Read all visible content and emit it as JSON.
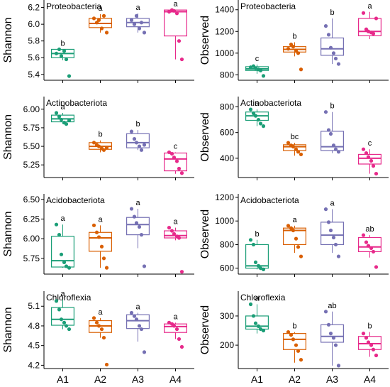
{
  "colors": [
    "#1b9e77",
    "#d95f02",
    "#7570b3",
    "#e7298a"
  ],
  "groups": [
    "A1",
    "A2",
    "A3",
    "A4"
  ],
  "chart_data": [
    {
      "type": "box",
      "title": "Proteobacteria",
      "ylabel": "Shannon",
      "ylim": [
        5.33,
        6.29
      ],
      "yticks": [
        5.4,
        5.6,
        5.8,
        6.0,
        6.2
      ],
      "boxes": [
        {
          "q1": 5.6,
          "median": 5.65,
          "q3": 5.7,
          "lo": 5.57,
          "hi": 5.7
        },
        {
          "q1": 5.96,
          "median": 6.01,
          "q3": 6.07,
          "lo": 5.9,
          "hi": 6.12
        },
        {
          "q1": 5.97,
          "median": 6.02,
          "q3": 6.07,
          "lo": 5.9,
          "hi": 6.13
        },
        {
          "q1": 5.86,
          "median": 6.15,
          "q3": 6.17,
          "lo": 5.58,
          "hi": 6.17
        }
      ],
      "points": [
        [
          5.65,
          5.7,
          5.62,
          5.68,
          5.58,
          5.38
        ],
        [
          6.07,
          6.02,
          6.05,
          5.95,
          6.1,
          5.9
        ],
        [
          6.05,
          6.0,
          6.1,
          5.95,
          6.02,
          5.9
        ],
        [
          6.15,
          6.17,
          6.16,
          6.13,
          5.8,
          5.58
        ]
      ],
      "letters": [
        "b",
        "a",
        "a",
        "a"
      ]
    },
    {
      "type": "box",
      "title": "Proteobacteria",
      "ylabel": "Observed",
      "ylim": [
        750,
        1490
      ],
      "yticks": [
        800,
        1000,
        1200,
        1400
      ],
      "boxes": [
        {
          "q1": 840,
          "median": 855,
          "q3": 875,
          "lo": 810,
          "hi": 895
        },
        {
          "q1": 1010,
          "median": 1035,
          "q3": 1060,
          "lo": 970,
          "hi": 1100
        },
        {
          "q1": 980,
          "median": 1040,
          "q3": 1140,
          "lo": 900,
          "hi": 1320
        },
        {
          "q1": 1160,
          "median": 1200,
          "q3": 1320,
          "lo": 1130,
          "hi": 1380
        }
      ],
      "points": [
        [
          870,
          880,
          860,
          850,
          840,
          790
        ],
        [
          1040,
          1080,
          1060,
          1020,
          1000,
          850
        ],
        [
          1250,
          1170,
          1050,
          1000,
          950,
          900
        ],
        [
          1370,
          1220,
          1200,
          1190,
          1180,
          1320
        ]
      ],
      "letters": [
        "c",
        "b",
        "b",
        "a"
      ]
    },
    {
      "type": "box",
      "title": "Actinobacteriota",
      "ylabel": "Shannon",
      "ylim": [
        5.08,
        6.17
      ],
      "yticks": [
        5.25,
        5.5,
        5.75,
        6.0
      ],
      "boxes": [
        {
          "q1": 5.83,
          "median": 5.87,
          "q3": 5.92,
          "lo": 5.8,
          "hi": 5.95
        },
        {
          "q1": 5.46,
          "median": 5.5,
          "q3": 5.55,
          "lo": 5.42,
          "hi": 5.58
        },
        {
          "q1": 5.48,
          "median": 5.55,
          "q3": 5.67,
          "lo": 5.45,
          "hi": 5.72
        },
        {
          "q1": 5.17,
          "median": 5.33,
          "q3": 5.41,
          "lo": 5.13,
          "hi": 5.42
        }
      ],
      "points": [
        [
          5.95,
          5.9,
          5.86,
          5.82,
          5.8,
          5.85
        ],
        [
          5.55,
          5.52,
          5.5,
          5.47,
          5.45,
          5.48
        ],
        [
          5.7,
          5.6,
          5.55,
          5.5,
          5.45,
          5.52
        ],
        [
          5.42,
          5.4,
          5.35,
          5.3,
          5.2,
          5.14
        ]
      ],
      "letters": [
        "a",
        "b",
        "b",
        "c"
      ]
    },
    {
      "type": "box",
      "title": "Actinobacteriota",
      "ylabel": "Observed",
      "ylim": [
        250,
        880
      ],
      "yticks": [
        400,
        600,
        800
      ],
      "boxes": [
        {
          "q1": 695,
          "median": 730,
          "q3": 760,
          "lo": 650,
          "hi": 780
        },
        {
          "q1": 460,
          "median": 490,
          "q3": 505,
          "lo": 420,
          "hi": 520
        },
        {
          "q1": 460,
          "median": 490,
          "q3": 610,
          "lo": 440,
          "hi": 760
        },
        {
          "q1": 355,
          "median": 400,
          "q3": 430,
          "lo": 280,
          "hi": 470
        }
      ],
      "points": [
        [
          780,
          750,
          730,
          700,
          670,
          650
        ],
        [
          520,
          500,
          490,
          470,
          450,
          430
        ],
        [
          760,
          620,
          590,
          500,
          470,
          450
        ],
        [
          470,
          440,
          410,
          380,
          340,
          280
        ]
      ],
      "letters": [
        "a",
        "bc",
        "b",
        "c"
      ]
    },
    {
      "type": "box",
      "title": "Acidobacteriota",
      "ylabel": "Shannon",
      "ylim": [
        5.55,
        6.57
      ],
      "yticks": [
        5.75,
        6.0,
        6.25,
        6.5
      ],
      "boxes": [
        {
          "q1": 5.64,
          "median": 5.72,
          "q3": 6.03,
          "lo": 5.63,
          "hi": 6.18
        },
        {
          "q1": 5.84,
          "median": 6.01,
          "q3": 6.08,
          "lo": 5.63,
          "hi": 6.17
        },
        {
          "q1": 6.05,
          "median": 6.18,
          "q3": 6.27,
          "lo": 5.88,
          "hi": 6.38
        },
        {
          "q1": 6.01,
          "median": 6.04,
          "q3": 6.1,
          "lo": 5.98,
          "hi": 6.14
        }
      ],
      "points": [
        [
          6.18,
          6.05,
          5.8,
          5.7,
          5.65,
          5.63
        ],
        [
          6.17,
          6.08,
          6.02,
          5.9,
          5.75,
          5.63
        ],
        [
          6.38,
          6.28,
          6.2,
          6.15,
          6.05,
          5.65
        ],
        [
          6.14,
          6.1,
          6.06,
          6.03,
          6.01,
          5.58
        ]
      ],
      "letters": [
        "a",
        "a",
        "a",
        "a"
      ]
    },
    {
      "type": "box",
      "title": "Acidobacteriota",
      "ylabel": "Observed",
      "ylim": [
        550,
        1230
      ],
      "yticks": [
        600,
        800,
        1000,
        1200
      ],
      "boxes": [
        {
          "q1": 600,
          "median": 620,
          "q3": 800,
          "lo": 590,
          "hi": 840
        },
        {
          "q1": 800,
          "median": 920,
          "q3": 940,
          "lo": 730,
          "hi": 960
        },
        {
          "q1": 800,
          "median": 880,
          "q3": 990,
          "lo": 730,
          "hi": 1100
        },
        {
          "q1": 740,
          "median": 780,
          "q3": 860,
          "lo": 690,
          "hi": 880
        }
      ],
      "points": [
        [
          840,
          800,
          650,
          620,
          600,
          590
        ],
        [
          960,
          940,
          920,
          850,
          780,
          700
        ],
        [
          1100,
          990,
          920,
          860,
          800,
          700
        ],
        [
          880,
          820,
          790,
          770,
          740,
          610
        ]
      ],
      "letters": [
        "b",
        "a",
        "a",
        "ab"
      ]
    },
    {
      "type": "box",
      "title": "Chloroflexia",
      "ylabel": "Shannon",
      "ylim": [
        4.15,
        5.33
      ],
      "yticks": [
        4.2,
        4.5,
        4.8,
        5.1
      ],
      "boxes": [
        {
          "q1": 4.81,
          "median": 4.9,
          "q3": 5.08,
          "lo": 4.75,
          "hi": 5.2
        },
        {
          "q1": 4.7,
          "median": 4.8,
          "q3": 4.88,
          "lo": 4.62,
          "hi": 4.92
        },
        {
          "q1": 4.76,
          "median": 4.88,
          "q3": 4.97,
          "lo": 4.56,
          "hi": 5.0
        },
        {
          "q1": 4.7,
          "median": 4.79,
          "q3": 4.83,
          "lo": 4.6,
          "hi": 4.85
        }
      ],
      "points": [
        [
          5.18,
          5.05,
          4.9,
          4.85,
          4.8,
          4.75
        ],
        [
          4.92,
          4.85,
          4.8,
          4.75,
          4.62,
          4.21
        ],
        [
          5.0,
          4.95,
          4.9,
          4.8,
          4.75,
          4.4
        ],
        [
          4.85,
          4.83,
          4.8,
          4.75,
          4.6,
          4.48
        ]
      ],
      "letters": [
        "a",
        "a",
        "a",
        "a"
      ]
    },
    {
      "type": "box",
      "title": "Chloroflexia",
      "ylabel": "Observed",
      "ylim": [
        120,
        385
      ],
      "yticks": [
        200,
        300
      ],
      "boxes": [
        {
          "q1": 255,
          "median": 265,
          "q3": 300,
          "lo": 240,
          "hi": 340
        },
        {
          "q1": 185,
          "median": 220,
          "q3": 240,
          "lo": 140,
          "hi": 245
        },
        {
          "q1": 210,
          "median": 230,
          "q3": 270,
          "lo": 130,
          "hi": 315
        },
        {
          "q1": 185,
          "median": 205,
          "q3": 230,
          "lo": 160,
          "hi": 245
        }
      ],
      "points": [
        [
          340,
          300,
          275,
          265,
          255,
          250
        ],
        [
          245,
          235,
          220,
          200,
          180,
          150
        ],
        [
          315,
          270,
          240,
          225,
          200,
          130
        ],
        [
          240,
          225,
          210,
          200,
          185,
          165
        ]
      ],
      "letters": [
        "a",
        "b",
        "ab",
        "b"
      ]
    }
  ]
}
